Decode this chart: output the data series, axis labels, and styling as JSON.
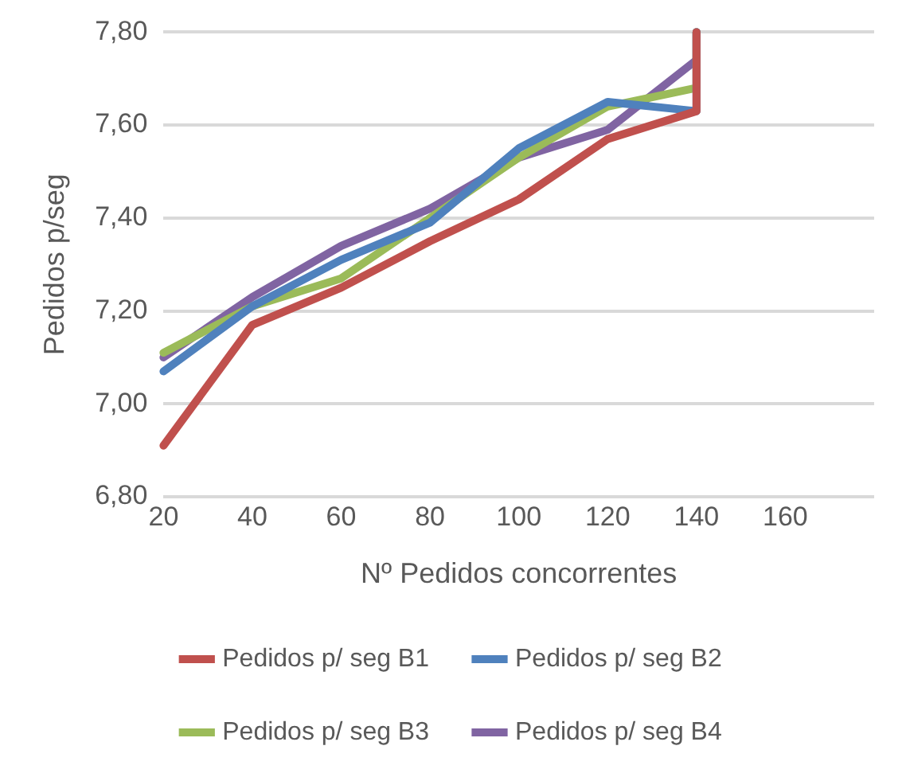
{
  "chart_data": {
    "type": "line",
    "xlabel": "Nº Pedidos concorrentes",
    "ylabel": "Pedidos p/seg",
    "x": [
      20,
      40,
      60,
      80,
      100,
      120,
      140,
      140
    ],
    "xlim": [
      20,
      180
    ],
    "xticks": [
      20,
      40,
      60,
      80,
      100,
      120,
      140,
      160
    ],
    "ylim": [
      6.8,
      7.8
    ],
    "yticks": [
      {
        "value": 6.8,
        "label": "6,80"
      },
      {
        "value": 7.0,
        "label": "7,00"
      },
      {
        "value": 7.2,
        "label": "7,20"
      },
      {
        "value": 7.4,
        "label": "7,40"
      },
      {
        "value": 7.6,
        "label": "7,60"
      },
      {
        "value": 7.8,
        "label": "7,80"
      }
    ],
    "series": [
      {
        "name": "Pedidos p/ seg B1",
        "color": "#c0504d",
        "values": [
          6.91,
          7.17,
          7.25,
          7.35,
          7.44,
          7.57,
          7.63,
          7.8
        ]
      },
      {
        "name": "Pedidos p/ seg B2",
        "color": "#4f81bd",
        "values": [
          7.07,
          7.21,
          7.31,
          7.39,
          7.55,
          7.65,
          7.63,
          7.8
        ]
      },
      {
        "name": "Pedidos p/ seg B3",
        "color": "#9bbb59",
        "values": [
          7.11,
          7.21,
          7.27,
          7.4,
          7.53,
          7.64,
          7.68,
          7.8
        ]
      },
      {
        "name": "Pedidos p/ seg B4",
        "color": "#8064a2",
        "values": [
          7.1,
          7.23,
          7.34,
          7.42,
          7.53,
          7.59,
          7.74,
          7.8
        ]
      }
    ],
    "grid": "y",
    "legend": "bottom",
    "marker": "none",
    "line_style": "solid"
  }
}
